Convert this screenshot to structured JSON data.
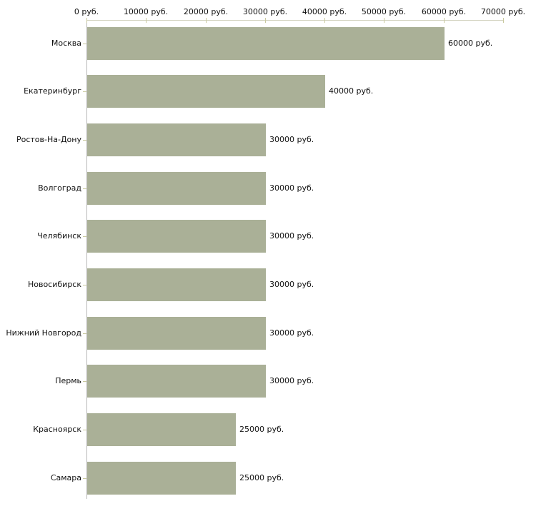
{
  "chart_data": {
    "type": "bar",
    "orientation": "horizontal",
    "title": "",
    "xlabel": "",
    "ylabel": "",
    "unit": "руб.",
    "categories": [
      "Москва",
      "Екатеринбург",
      "Ростов-На-Дону",
      "Волгоград",
      "Челябинск",
      "Новосибирск",
      "Нижний Новгород",
      "Пермь",
      "Красноярск",
      "Самара"
    ],
    "values": [
      60000,
      40000,
      30000,
      30000,
      30000,
      30000,
      30000,
      30000,
      25000,
      25000
    ],
    "value_labels": [
      "60000 руб.",
      "40000 руб.",
      "30000 руб.",
      "30000 руб.",
      "30000 руб.",
      "30000 руб.",
      "30000 руб.",
      "30000 руб.",
      "25000 руб.",
      "25000 руб."
    ],
    "x_axis": {
      "position": "top",
      "xlim": [
        0,
        70000
      ],
      "ticks": [
        0,
        10000,
        20000,
        30000,
        40000,
        50000,
        60000,
        70000
      ],
      "tick_labels": [
        "0 руб.",
        "10000 руб.",
        "20000 руб.",
        "30000 руб.",
        "40000 руб.",
        "50000 руб.",
        "60000 руб.",
        "70000 руб."
      ]
    },
    "grid": false,
    "legend": false,
    "colors": {
      "bar": "#aab097",
      "x_tick": "#c9c99f",
      "category_tick": "#c9c99f",
      "x_axis_line": "#d3d3c0",
      "y_axis_line": "#b9b9b9",
      "text": "#111111",
      "background": "#ffffff"
    }
  }
}
